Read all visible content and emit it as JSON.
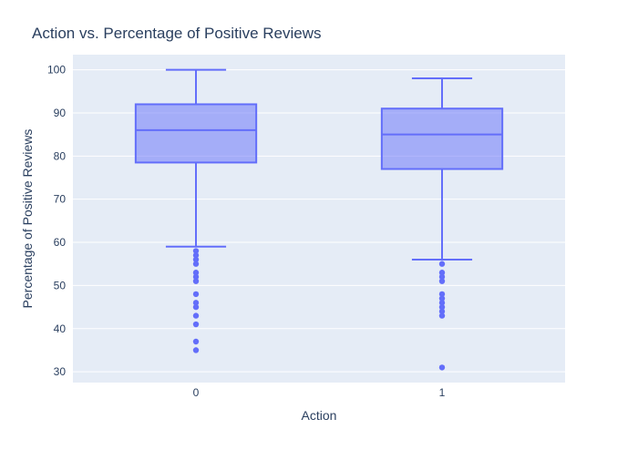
{
  "chart_data": {
    "type": "box",
    "title": "Action vs. Percentage of Positive Reviews",
    "xlabel": "Action",
    "ylabel": "Percentage of Positive Reviews",
    "categories": [
      "0",
      "1"
    ],
    "ylim": [
      27.5,
      103.5
    ],
    "yticks": [
      30,
      40,
      50,
      60,
      70,
      80,
      90,
      100
    ],
    "grid": true,
    "legend": "none",
    "series": [
      {
        "category": "0",
        "q1": 78.5,
        "median": 86,
        "q3": 92,
        "lower_fence": 59,
        "upper_fence": 100,
        "outliers": [
          58,
          57,
          56,
          55,
          53,
          52,
          51,
          48,
          46,
          45,
          43,
          41,
          37,
          35
        ]
      },
      {
        "category": "1",
        "q1": 77,
        "median": 85,
        "q3": 91,
        "lower_fence": 56,
        "upper_fence": 98,
        "outliers": [
          55,
          53,
          52,
          51,
          48,
          47,
          46,
          45,
          44,
          43,
          31
        ]
      }
    ],
    "colors": {
      "box_line": "#636efa",
      "box_fill": "rgba(99,110,250,0.5)",
      "plot_bg": "#e5ecf6",
      "grid": "#ffffff",
      "text": "#2a3f5f"
    }
  }
}
